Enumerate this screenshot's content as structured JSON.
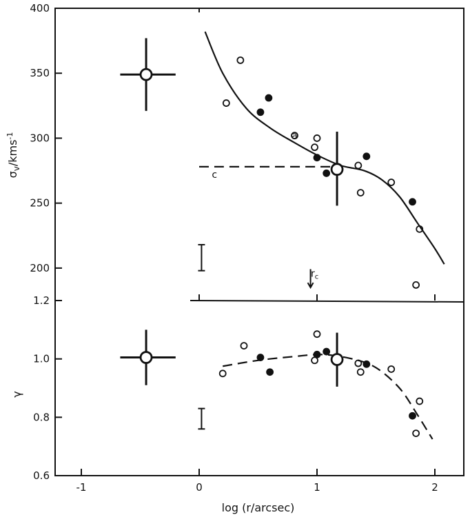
{
  "chart_data": [
    {
      "type": "scatter",
      "panel": "upper",
      "ylabel": "σv/kms⁻¹",
      "ylabel_parts": {
        "sym": "σ",
        "sub": "v",
        "unit": "/kms",
        "sup": "-1"
      },
      "xlabel": "log (r/arcsec)",
      "xticks": [
        -1,
        0,
        1,
        2
      ],
      "xtick_labels": [
        "-1",
        "0",
        "1",
        "2"
      ],
      "xlim": [
        -1.2,
        2.25
      ],
      "yticks": [
        200,
        250,
        300,
        350,
        400
      ],
      "ytick_labels": [
        "200",
        "250",
        "300",
        "350",
        "400"
      ],
      "ylim": [
        175,
        400
      ],
      "grid": false,
      "series": [
        {
          "marker": "open-circle",
          "points": [
            [
              0.23,
              327
            ],
            [
              0.35,
              360
            ],
            [
              0.81,
              302
            ],
            [
              0.98,
              293
            ],
            [
              1.0,
              300
            ],
            [
              1.35,
              279
            ],
            [
              1.37,
              258
            ],
            [
              1.63,
              266
            ],
            [
              1.84,
              187
            ],
            [
              1.87,
              230
            ]
          ]
        },
        {
          "marker": "filled-circle",
          "points": [
            [
              0.52,
              320
            ],
            [
              0.59,
              331
            ],
            [
              1.0,
              285
            ],
            [
              1.08,
              273
            ],
            [
              1.42,
              286
            ],
            [
              1.81,
              251
            ]
          ]
        },
        {
          "marker": "curve-solid",
          "points": [
            [
              0.05,
              382
            ],
            [
              0.2,
              350
            ],
            [
              0.4,
              323
            ],
            [
              0.6,
              308
            ],
            [
              0.8,
              297
            ],
            [
              1.0,
              287
            ],
            [
              1.2,
              279
            ],
            [
              1.4,
              275
            ],
            [
              1.55,
              268
            ],
            [
              1.7,
              255
            ],
            [
              1.85,
              235
            ],
            [
              2.0,
              215
            ],
            [
              2.08,
              203
            ]
          ]
        },
        {
          "marker": "dashed-line",
          "points": [
            [
              0.0,
              278
            ],
            [
              1.2,
              278
            ]
          ]
        }
      ],
      "error_bars": [
        {
          "x": -0.45,
          "y": 349,
          "ylow": 321,
          "yhigh": 377,
          "xlow": -0.67,
          "xhigh": -0.2,
          "marker": "big-open-circle"
        },
        {
          "x": 1.17,
          "y": 276,
          "ylow": 248,
          "yhigh": 305,
          "marker": "big-open-circle"
        },
        {
          "x": 0.02,
          "y": 208,
          "ylow": 198,
          "yhigh": 218,
          "marker": "bracket"
        }
      ],
      "annotations": [
        {
          "text": "c",
          "x": 0.13,
          "y": 272
        },
        {
          "text": "a",
          "x": 0.81,
          "y": 302
        },
        {
          "text": "r",
          "sub": "c",
          "x": 0.98,
          "y": 196,
          "arrow_to_y": 185
        }
      ]
    },
    {
      "type": "scatter",
      "panel": "lower",
      "ylabel": "γ",
      "xlabel": "log (r/arcsec)",
      "xticks": [
        -1,
        0,
        1,
        2
      ],
      "xtick_labels": [
        "-1",
        "0",
        "1",
        "2"
      ],
      "xlim": [
        -1.2,
        2.25
      ],
      "yticks": [
        0.6,
        0.8,
        1.0,
        1.2
      ],
      "ytick_labels": [
        "0.6",
        "0.8",
        "1.0",
        "1.2"
      ],
      "ylim": [
        0.6,
        1.2
      ],
      "grid": false,
      "series": [
        {
          "marker": "open-circle",
          "points": [
            [
              0.2,
              0.95
            ],
            [
              0.38,
              1.045
            ],
            [
              1.0,
              1.085
            ],
            [
              0.98,
              0.995
            ],
            [
              1.35,
              0.985
            ],
            [
              1.37,
              0.955
            ],
            [
              1.63,
              0.965
            ],
            [
              1.87,
              0.855
            ],
            [
              1.84,
              0.745
            ]
          ]
        },
        {
          "marker": "filled-circle",
          "points": [
            [
              0.52,
              1.005
            ],
            [
              0.6,
              0.955
            ],
            [
              1.0,
              1.015
            ],
            [
              1.08,
              1.025
            ],
            [
              1.42,
              0.982
            ],
            [
              1.81,
              0.805
            ]
          ]
        },
        {
          "marker": "dashed-curve",
          "points": [
            [
              0.2,
              0.975
            ],
            [
              0.5,
              0.995
            ],
            [
              0.8,
              1.008
            ],
            [
              1.05,
              1.015
            ],
            [
              1.3,
              1.0
            ],
            [
              1.5,
              0.97
            ],
            [
              1.7,
              0.9
            ],
            [
              1.85,
              0.81
            ],
            [
              1.98,
              0.725
            ]
          ]
        }
      ],
      "error_bars": [
        {
          "x": -0.45,
          "y": 1.005,
          "ylow": 0.91,
          "yhigh": 1.1,
          "xlow": -0.67,
          "xhigh": -0.2,
          "marker": "big-open-circle"
        },
        {
          "x": 1.17,
          "y": 0.998,
          "ylow": 0.905,
          "yhigh": 1.09,
          "marker": "big-open-circle"
        },
        {
          "x": 0.02,
          "y": 0.795,
          "ylow": 0.76,
          "yhigh": 0.83,
          "marker": "bracket"
        }
      ]
    }
  ]
}
